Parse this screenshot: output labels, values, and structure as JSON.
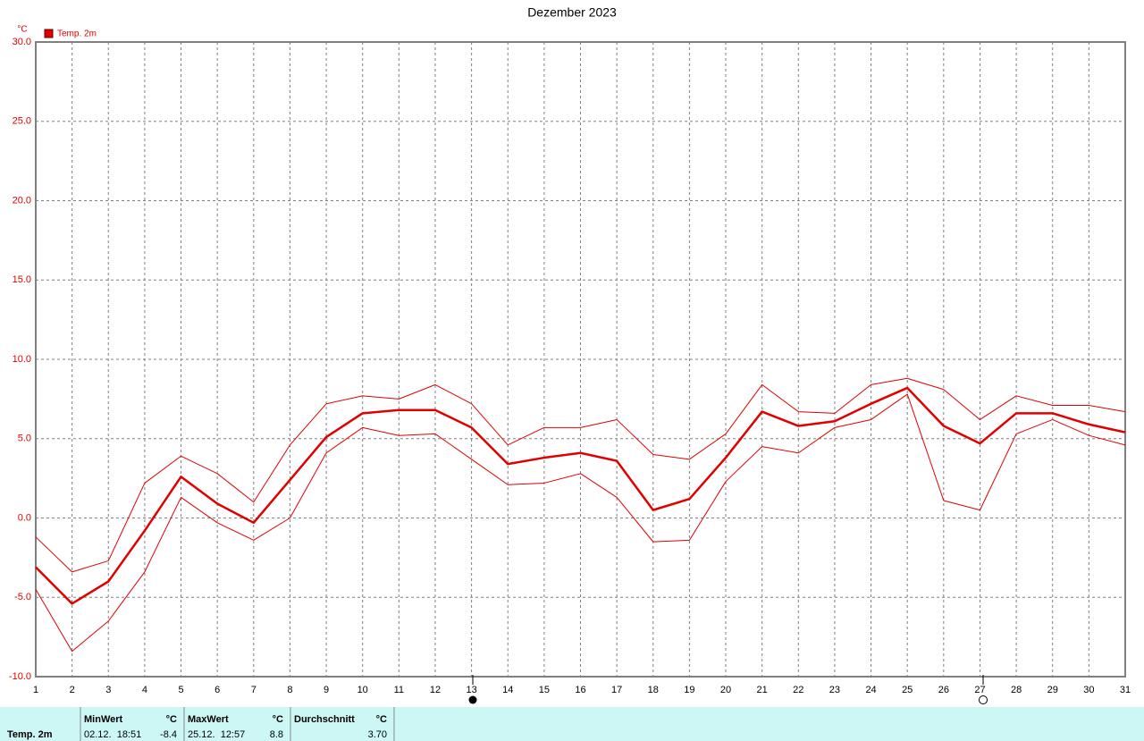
{
  "chart_data": {
    "type": "line",
    "title": "Dezember 2023",
    "y_unit": "°C",
    "x": [
      1,
      2,
      3,
      4,
      5,
      6,
      7,
      8,
      9,
      10,
      11,
      12,
      13,
      14,
      15,
      16,
      17,
      18,
      19,
      20,
      21,
      22,
      23,
      24,
      25,
      26,
      27,
      28,
      29,
      30,
      31
    ],
    "series": [
      {
        "name": "Temp. 2m",
        "color": "#e00000",
        "linewidth": 2.5,
        "values": [
          -3.1,
          -5.4,
          -4.0,
          -0.8,
          2.6,
          0.9,
          -0.3,
          2.4,
          5.1,
          6.6,
          6.8,
          6.8,
          5.7,
          3.4,
          3.8,
          4.1,
          3.6,
          0.5,
          1.2,
          3.8,
          6.7,
          5.8,
          6.1,
          7.2,
          8.2,
          5.8,
          4.7,
          6.6,
          6.6,
          5.9,
          5.4
        ]
      },
      {
        "color": "#e00000",
        "linewidth": 1,
        "values": [
          -1.2,
          -3.4,
          -2.7,
          2.2,
          3.9,
          2.8,
          1.0,
          4.6,
          7.2,
          7.7,
          7.5,
          8.4,
          7.2,
          4.6,
          5.7,
          5.7,
          6.2,
          4.0,
          3.7,
          5.3,
          8.4,
          6.7,
          6.6,
          8.4,
          8.8,
          8.1,
          6.2,
          7.7,
          7.1,
          7.1,
          6.7
        ]
      },
      {
        "color": "#e00000",
        "linewidth": 1,
        "values": [
          -4.5,
          -8.4,
          -6.5,
          -3.4,
          1.3,
          -0.3,
          -1.4,
          0.0,
          4.1,
          5.7,
          5.2,
          5.3,
          3.7,
          2.1,
          2.2,
          2.8,
          1.3,
          -1.5,
          -1.4,
          2.3,
          4.5,
          4.1,
          5.7,
          6.2,
          7.8,
          1.1,
          0.5,
          5.3,
          6.2,
          5.2,
          4.6
        ]
      }
    ],
    "xlim": [
      1,
      31
    ],
    "xticks": [
      1,
      2,
      3,
      4,
      5,
      6,
      7,
      8,
      9,
      10,
      11,
      12,
      13,
      14,
      15,
      16,
      17,
      18,
      19,
      20,
      21,
      22,
      23,
      24,
      25,
      26,
      27,
      28,
      29,
      30,
      31
    ],
    "ylim": [
      -10,
      30
    ],
    "yticks": [
      {
        "value": -10,
        "label": "-10.0"
      },
      {
        "value": -5,
        "label": "-5.0"
      },
      {
        "value": 0,
        "label": "0.0"
      },
      {
        "value": 5,
        "label": "5.0"
      },
      {
        "value": 10,
        "label": "10.0"
      },
      {
        "value": 15,
        "label": "15.0"
      },
      {
        "value": 20,
        "label": "20.0"
      },
      {
        "value": 25,
        "label": "25.0"
      },
      {
        "value": 30,
        "label": "30.0"
      }
    ],
    "grid": true
  },
  "footer": {
    "row_label": "Temp. 2m",
    "cells": [
      {
        "header": "MinWert",
        "unit": "°C",
        "time": "02.12.  18:51",
        "value": "-8.4"
      },
      {
        "header": "MaxWert",
        "unit": "°C",
        "time": "25.12.  12:57",
        "value": "8.8"
      },
      {
        "header": "Durchschnitt",
        "unit": "°C",
        "value": "3.70"
      }
    ]
  }
}
